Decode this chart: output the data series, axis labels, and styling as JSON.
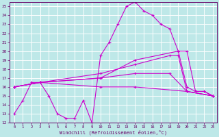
{
  "xlabel": "Windchill (Refroidissement éolien,°C)",
  "xlim": [
    -0.5,
    23.5
  ],
  "ylim": [
    12,
    25.5
  ],
  "yticks": [
    12,
    13,
    14,
    15,
    16,
    17,
    18,
    19,
    20,
    21,
    22,
    23,
    24,
    25
  ],
  "xticks": [
    0,
    1,
    2,
    3,
    4,
    5,
    6,
    7,
    8,
    9,
    10,
    11,
    12,
    13,
    14,
    15,
    16,
    17,
    18,
    19,
    20,
    21,
    22,
    23
  ],
  "bg_color": "#bee8e8",
  "grid_color": "#ffffff",
  "line_color": "#cc00cc",
  "lines": [
    {
      "x": [
        0,
        1,
        2,
        3,
        4,
        5,
        6,
        7,
        8,
        9,
        10,
        11,
        12,
        13,
        14,
        15,
        16,
        17,
        18,
        19,
        20,
        21,
        22,
        23
      ],
      "y": [
        13,
        14.5,
        16.5,
        16.5,
        15,
        13,
        12.5,
        12.5,
        14.5,
        12,
        19.5,
        21,
        23,
        25,
        25.5,
        24.5,
        24,
        23,
        22.5,
        20,
        16,
        15.5,
        15.5,
        15
      ]
    },
    {
      "x": [
        0,
        3,
        10,
        14,
        19,
        20,
        21,
        22,
        23
      ],
      "y": [
        16,
        16.5,
        17,
        19,
        20,
        20,
        15.5,
        15.5,
        15
      ]
    },
    {
      "x": [
        0,
        3,
        10,
        14,
        18,
        19,
        20,
        23
      ],
      "y": [
        16,
        16.5,
        17.5,
        18.5,
        19.5,
        19.5,
        15.5,
        15
      ]
    },
    {
      "x": [
        0,
        3,
        10,
        14,
        18,
        20,
        23
      ],
      "y": [
        16,
        16.5,
        17,
        17.5,
        17.5,
        15.5,
        15
      ]
    },
    {
      "x": [
        0,
        3,
        10,
        14,
        20,
        23
      ],
      "y": [
        16,
        16.5,
        16,
        16,
        15.5,
        15
      ]
    }
  ]
}
